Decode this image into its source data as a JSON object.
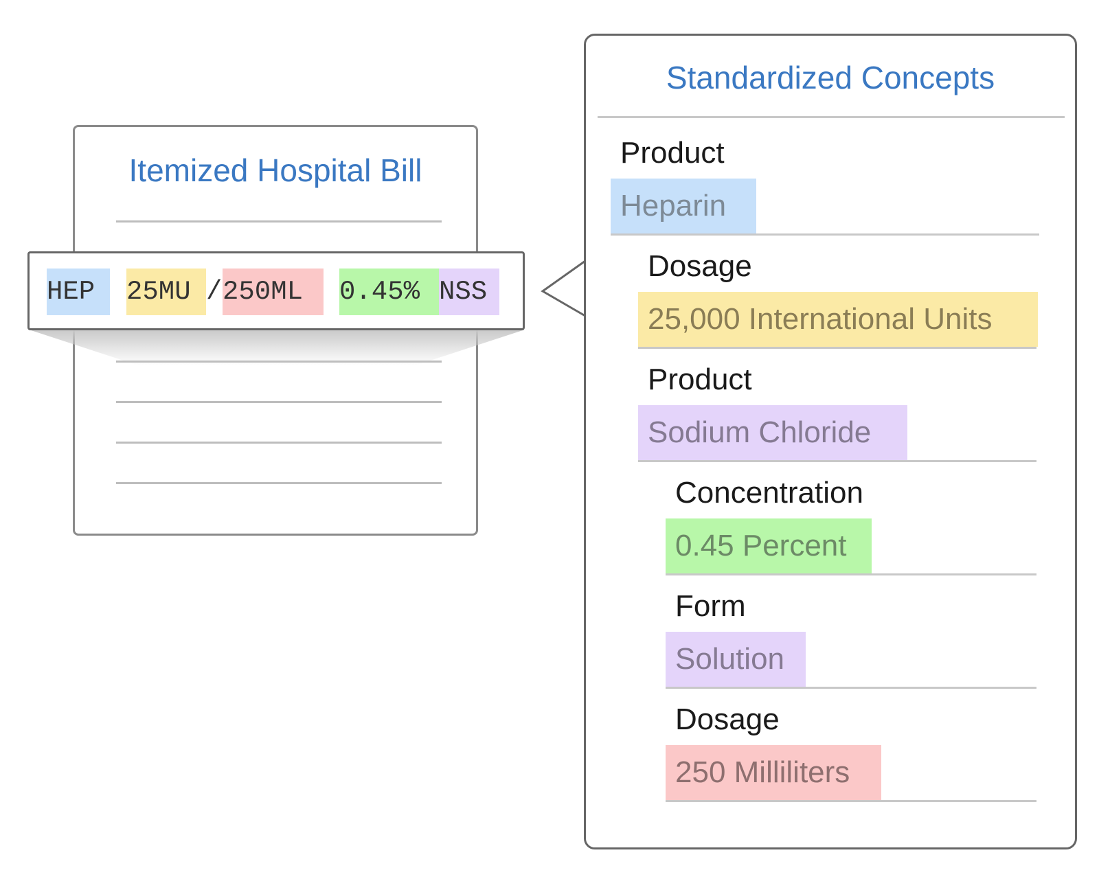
{
  "bill": {
    "title": "Itemized Hospital Bill"
  },
  "code_line": [
    {
      "text": "HEP",
      "color": "#c6e0fa"
    },
    {
      "text": "25MU",
      "color": "#fbeaa6"
    },
    {
      "text": "/",
      "color": "#ffffff"
    },
    {
      "text": "250ML",
      "color": "#fbc8c8"
    },
    {
      "text": "0.45%",
      "color": "#b8f7a9"
    },
    {
      "text": "NSS",
      "color": "#e4d4fa"
    }
  ],
  "concepts": {
    "title": "Standardized Concepts",
    "entries": [
      {
        "label": "Product",
        "value": "Heparin",
        "color": "#c6e0fa",
        "text_color": "#7d8a96",
        "level": 0
      },
      {
        "label": "Dosage",
        "value": "25,000 International Units",
        "color": "#fbeaa6",
        "text_color": "#8a7d55",
        "level": 1
      },
      {
        "label": "Product",
        "value": "Sodium Chloride",
        "color": "#e4d4fa",
        "text_color": "#857a92",
        "level": 1
      },
      {
        "label": "Concentration",
        "value": "0.45 Percent",
        "color": "#b8f7a9",
        "text_color": "#6c8a66",
        "level": 2
      },
      {
        "label": "Form",
        "value": "Solution",
        "color": "#e4d4fa",
        "text_color": "#857a92",
        "level": 2
      },
      {
        "label": "Dosage",
        "value": "250 Milliliters",
        "color": "#fbc8c8",
        "text_color": "#8e6f6f",
        "level": 2
      }
    ]
  }
}
